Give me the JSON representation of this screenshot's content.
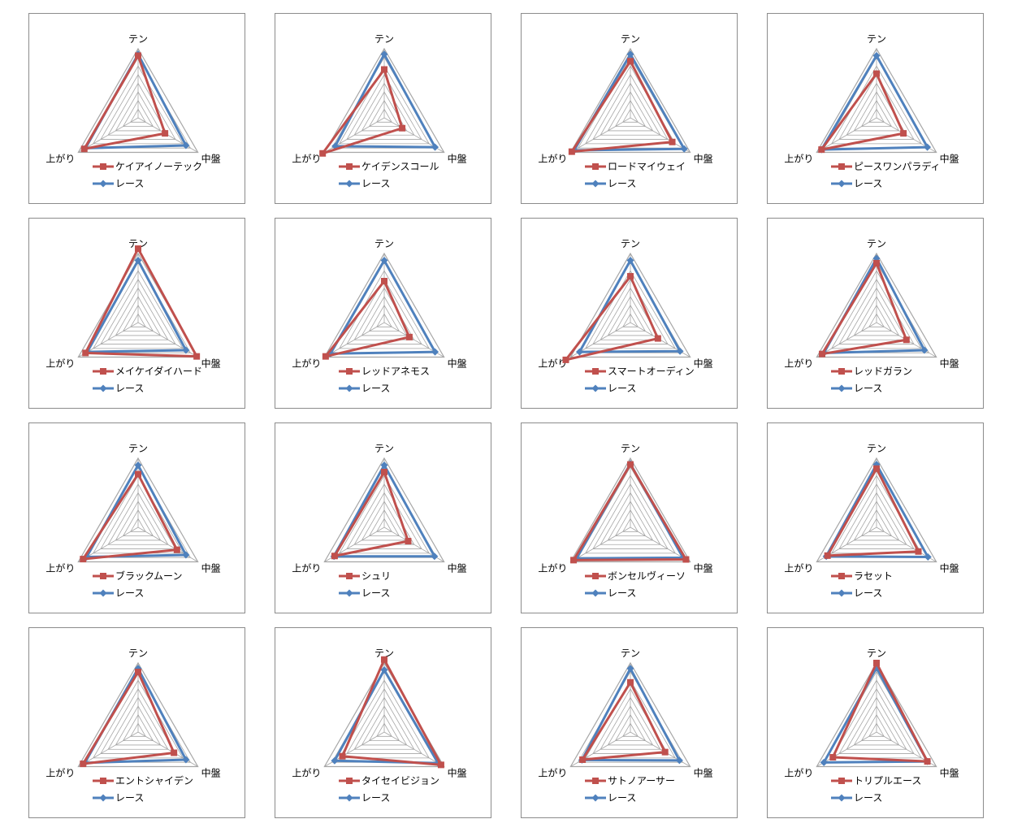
{
  "chart_data": [
    {
      "type": "radar",
      "axes": [
        "テン",
        "中盤",
        "上がり"
      ],
      "series": [
        {
          "name": "ケイアイノーテック",
          "values": [
            0.9,
            0.45,
            0.9
          ]
        },
        {
          "name": "レース",
          "values": [
            0.92,
            0.8,
            0.88
          ]
        }
      ]
    },
    {
      "type": "radar",
      "axes": [
        "テン",
        "中盤",
        "上がり"
      ],
      "series": [
        {
          "name": "ケイデンスコール",
          "values": [
            0.7,
            0.3,
            1.03
          ]
        },
        {
          "name": "レース",
          "values": [
            0.92,
            0.85,
            0.82
          ]
        }
      ]
    },
    {
      "type": "radar",
      "axes": [
        "テン",
        "中盤",
        "上がり"
      ],
      "series": [
        {
          "name": "ロードマイウェイ",
          "values": [
            0.82,
            0.7,
            0.98
          ]
        },
        {
          "name": "レース",
          "values": [
            0.92,
            0.9,
            0.94
          ]
        }
      ]
    },
    {
      "type": "radar",
      "axes": [
        "テン",
        "中盤",
        "上がり"
      ],
      "series": [
        {
          "name": "ピースワンパラディ",
          "values": [
            0.64,
            0.45,
            0.92
          ]
        },
        {
          "name": "レース",
          "values": [
            0.9,
            0.85,
            0.92
          ]
        }
      ]
    },
    {
      "type": "radar",
      "axes": [
        "テン",
        "中盤",
        "上がり"
      ],
      "series": [
        {
          "name": "メイケイダイハード",
          "values": [
            1.07,
            0.98,
            0.88
          ]
        },
        {
          "name": "レース",
          "values": [
            0.9,
            0.8,
            0.85
          ]
        }
      ]
    },
    {
      "type": "radar",
      "axes": [
        "テン",
        "中盤",
        "上がり"
      ],
      "series": [
        {
          "name": "レッドアネモス",
          "values": [
            0.6,
            0.42,
            0.98
          ]
        },
        {
          "name": "レース",
          "values": [
            0.9,
            0.85,
            0.9
          ]
        }
      ]
    },
    {
      "type": "radar",
      "axes": [
        "テン",
        "中盤",
        "上がり"
      ],
      "series": [
        {
          "name": "スマートオーディン",
          "values": [
            0.67,
            0.46,
            1.08
          ]
        },
        {
          "name": "レース",
          "values": [
            0.9,
            0.83,
            0.85
          ]
        }
      ]
    },
    {
      "type": "radar",
      "axes": [
        "テン",
        "中盤",
        "上がり"
      ],
      "series": [
        {
          "name": "レッドガラン",
          "values": [
            0.86,
            0.5,
            0.91
          ]
        },
        {
          "name": "レース",
          "values": [
            0.93,
            0.8,
            0.88
          ]
        }
      ]
    },
    {
      "type": "radar",
      "axes": [
        "テン",
        "中盤",
        "上がり"
      ],
      "series": [
        {
          "name": "ブラックムーン",
          "values": [
            0.77,
            0.65,
            0.92
          ]
        },
        {
          "name": "レース",
          "values": [
            0.9,
            0.8,
            0.86
          ]
        }
      ]
    },
    {
      "type": "radar",
      "axes": [
        "テン",
        "中盤",
        "上がり"
      ],
      "series": [
        {
          "name": "シュリ",
          "values": [
            0.8,
            0.4,
            0.83
          ]
        },
        {
          "name": "レース",
          "values": [
            0.9,
            0.84,
            0.84
          ]
        }
      ]
    },
    {
      "type": "radar",
      "axes": [
        "テン",
        "中盤",
        "上がり"
      ],
      "series": [
        {
          "name": "ボンセルヴィーソ",
          "values": [
            0.91,
            0.93,
            0.95
          ]
        },
        {
          "name": "レース",
          "values": [
            0.92,
            0.88,
            0.9
          ]
        }
      ]
    },
    {
      "type": "radar",
      "axes": [
        "テン",
        "中盤",
        "上がり"
      ],
      "series": [
        {
          "name": "ラセット",
          "values": [
            0.85,
            0.7,
            0.82
          ]
        },
        {
          "name": "レース",
          "values": [
            0.91,
            0.86,
            0.84
          ]
        }
      ]
    },
    {
      "type": "radar",
      "axes": [
        "テン",
        "中盤",
        "上がり"
      ],
      "series": [
        {
          "name": "エントシャイデン",
          "values": [
            0.87,
            0.6,
            0.92
          ]
        },
        {
          "name": "レース",
          "values": [
            0.92,
            0.8,
            0.89
          ]
        }
      ]
    },
    {
      "type": "radar",
      "axes": [
        "テン",
        "中盤",
        "上がり"
      ],
      "series": [
        {
          "name": "タイセイビジョン",
          "values": [
            1.05,
            0.95,
            0.7
          ]
        },
        {
          "name": "レース",
          "values": [
            0.9,
            0.9,
            0.83
          ]
        }
      ]
    },
    {
      "type": "radar",
      "axes": [
        "テン",
        "中盤",
        "上がり"
      ],
      "series": [
        {
          "name": "サトノアーサー",
          "values": [
            0.72,
            0.58,
            0.8
          ]
        },
        {
          "name": "レース",
          "values": [
            0.92,
            0.82,
            0.81
          ]
        }
      ]
    },
    {
      "type": "radar",
      "axes": [
        "テン",
        "中盤",
        "上がり"
      ],
      "series": [
        {
          "name": "トリプルエース",
          "values": [
            1.0,
            0.85,
            0.73
          ]
        },
        {
          "name": "レース",
          "values": [
            0.93,
            0.85,
            0.88
          ]
        }
      ]
    }
  ],
  "colors": {
    "horse": "#c0504d",
    "race": "#4f81bd",
    "grid": "#a6a6a6",
    "border": "#8c8c8c"
  }
}
